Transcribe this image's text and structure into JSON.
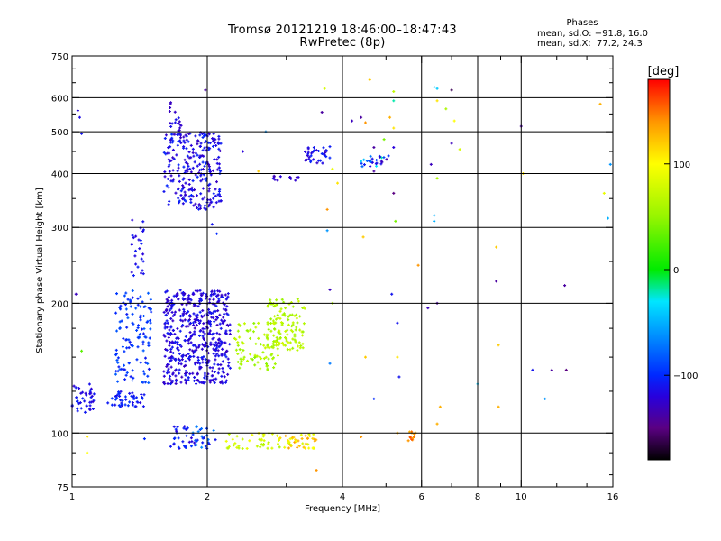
{
  "header": {
    "title_line1": "Tromsø 20121219 18:46:00–18:47:43",
    "title_line2": "RwPretec (8p)",
    "stats_title": "Phases",
    "stats_o": "mean, sd,O: −91.8, 16.0",
    "stats_x": "mean, sd,X:  77.2, 24.3"
  },
  "colorbar": {
    "label": "[deg]",
    "ticks": [
      {
        "value": 100,
        "label": "100"
      },
      {
        "value": 0,
        "label": "0"
      },
      {
        "value": -100,
        "label": "−100"
      }
    ],
    "range": [
      -180,
      180
    ]
  },
  "chart_data": {
    "type": "scatter",
    "title": "Tromsø 20121219 18:46:00–18:47:43",
    "subtitle": "RwPretec (8p)",
    "xlabel": "Frequency [MHz]",
    "ylabel": "Stationary phase Virtual Height [km]",
    "x_scale": "log",
    "y_scale": "log",
    "xlim": [
      1,
      16
    ],
    "ylim": [
      75,
      750
    ],
    "x_ticks": [
      {
        "value": 1,
        "label": "1"
      },
      {
        "value": 2,
        "label": "2"
      },
      {
        "value": 4,
        "label": "4"
      },
      {
        "value": 6,
        "label": "6"
      },
      {
        "value": 8,
        "label": "8"
      },
      {
        "value": 10,
        "label": "10"
      },
      {
        "value": 16,
        "label": "16"
      }
    ],
    "y_ticks": [
      {
        "value": 75,
        "label": "75"
      },
      {
        "value": 100,
        "label": "100"
      },
      {
        "value": 200,
        "label": "200"
      },
      {
        "value": 300,
        "label": "300"
      },
      {
        "value": 400,
        "label": "400"
      },
      {
        "value": 500,
        "label": "500"
      },
      {
        "value": 600,
        "label": "600"
      },
      {
        "value": 750,
        "label": "750"
      }
    ],
    "grid_x": [
      2,
      4,
      6,
      8,
      10
    ],
    "grid_y": [
      100,
      200,
      300,
      400,
      500,
      600
    ],
    "grid": true,
    "color_by": "phase_deg",
    "clusters": [
      {
        "x": [
          1.0,
          1.12
        ],
        "y": [
          110,
          130
        ],
        "n": 40,
        "phase": [
          -125,
          -100
        ]
      },
      {
        "x": [
          1.2,
          1.45
        ],
        "y": [
          115,
          125
        ],
        "n": 45,
        "phase": [
          -120,
          -95
        ]
      },
      {
        "x": [
          1.25,
          1.5
        ],
        "y": [
          130,
          215
        ],
        "n": 120,
        "phase": [
          -110,
          -80
        ]
      },
      {
        "x": [
          1.35,
          1.45
        ],
        "y": [
          230,
          320
        ],
        "n": 25,
        "phase": [
          -125,
          -105
        ]
      },
      {
        "x": [
          1.6,
          2.25
        ],
        "y": [
          130,
          215
        ],
        "n": 520,
        "phase": [
          -130,
          -105
        ]
      },
      {
        "x": [
          1.6,
          2.15
        ],
        "y": [
          330,
          500
        ],
        "n": 260,
        "phase": [
          -130,
          -100
        ]
      },
      {
        "x": [
          1.65,
          1.75
        ],
        "y": [
          500,
          590
        ],
        "n": 18,
        "phase": [
          -130,
          -110
        ]
      },
      {
        "x": [
          1.65,
          1.9
        ],
        "y": [
          91,
          104
        ],
        "n": 30,
        "phase": [
          -125,
          -95
        ]
      },
      {
        "x": [
          1.85,
          2.1
        ],
        "y": [
          92,
          104
        ],
        "n": 25,
        "phase": [
          -115,
          -60
        ]
      },
      {
        "x": [
          2.3,
          2.9
        ],
        "y": [
          140,
          180
        ],
        "n": 90,
        "phase": [
          45,
          75
        ]
      },
      {
        "x": [
          2.7,
          3.3
        ],
        "y": [
          155,
          205
        ],
        "n": 110,
        "phase": [
          50,
          80
        ]
      },
      {
        "x": [
          2.2,
          2.9
        ],
        "y": [
          92,
          100
        ],
        "n": 40,
        "phase": [
          60,
          95
        ]
      },
      {
        "x": [
          2.9,
          3.5
        ],
        "y": [
          92,
          100
        ],
        "n": 45,
        "phase": [
          80,
          140
        ]
      },
      {
        "x": [
          3.3,
          3.75
        ],
        "y": [
          420,
          465
        ],
        "n": 35,
        "phase": [
          -130,
          -100
        ]
      },
      {
        "x": [
          2.8,
          3.2
        ],
        "y": [
          385,
          395
        ],
        "n": 12,
        "phase": [
          -135,
          -110
        ]
      },
      {
        "x": [
          4.4,
          5.1
        ],
        "y": [
          415,
          440
        ],
        "n": 25,
        "phase": [
          -135,
          -20
        ]
      },
      {
        "x": [
          5.6,
          5.85
        ],
        "y": [
          96,
          101
        ],
        "n": 12,
        "phase": [
          120,
          160
        ]
      }
    ],
    "points": [
      {
        "x": 1.02,
        "y": 210,
        "phase": -130
      },
      {
        "x": 1.03,
        "y": 560,
        "phase": -120
      },
      {
        "x": 1.04,
        "y": 540,
        "phase": -115
      },
      {
        "x": 1.05,
        "y": 495,
        "phase": -110
      },
      {
        "x": 1.08,
        "y": 98,
        "phase": 110
      },
      {
        "x": 1.08,
        "y": 90,
        "phase": 100
      },
      {
        "x": 1.05,
        "y": 155,
        "phase": 30
      },
      {
        "x": 1.45,
        "y": 97,
        "phase": -100
      },
      {
        "x": 1.98,
        "y": 625,
        "phase": -140
      },
      {
        "x": 2.05,
        "y": 305,
        "phase": -110
      },
      {
        "x": 2.1,
        "y": 290,
        "phase": -100
      },
      {
        "x": 2.4,
        "y": 450,
        "phase": -120
      },
      {
        "x": 2.6,
        "y": 405,
        "phase": 120
      },
      {
        "x": 2.7,
        "y": 500,
        "phase": -60
      },
      {
        "x": 3.6,
        "y": 555,
        "phase": -140
      },
      {
        "x": 3.5,
        "y": 82,
        "phase": 140
      },
      {
        "x": 3.65,
        "y": 630,
        "phase": 80
      },
      {
        "x": 3.7,
        "y": 330,
        "phase": 140
      },
      {
        "x": 3.7,
        "y": 295,
        "phase": -60
      },
      {
        "x": 3.75,
        "y": 215,
        "phase": -130
      },
      {
        "x": 3.75,
        "y": 145,
        "phase": -70
      },
      {
        "x": 3.8,
        "y": 200,
        "phase": 60
      },
      {
        "x": 3.8,
        "y": 410,
        "phase": 90
      },
      {
        "x": 3.9,
        "y": 380,
        "phase": 110
      },
      {
        "x": 4.2,
        "y": 530,
        "phase": -130
      },
      {
        "x": 4.4,
        "y": 540,
        "phase": -140
      },
      {
        "x": 4.5,
        "y": 525,
        "phase": 140
      },
      {
        "x": 4.6,
        "y": 660,
        "phase": 120
      },
      {
        "x": 4.45,
        "y": 285,
        "phase": 120
      },
      {
        "x": 4.5,
        "y": 150,
        "phase": 120
      },
      {
        "x": 4.7,
        "y": 460,
        "phase": -140
      },
      {
        "x": 4.7,
        "y": 405,
        "phase": -140
      },
      {
        "x": 4.7,
        "y": 120,
        "phase": -100
      },
      {
        "x": 4.4,
        "y": 98,
        "phase": 140
      },
      {
        "x": 4.9,
        "y": 425,
        "phase": -130
      },
      {
        "x": 4.95,
        "y": 480,
        "phase": 40
      },
      {
        "x": 5.1,
        "y": 540,
        "phase": 130
      },
      {
        "x": 5.2,
        "y": 620,
        "phase": 70
      },
      {
        "x": 5.2,
        "y": 590,
        "phase": -20
      },
      {
        "x": 5.2,
        "y": 510,
        "phase": 110
      },
      {
        "x": 5.2,
        "y": 460,
        "phase": -120
      },
      {
        "x": 5.15,
        "y": 210,
        "phase": -110
      },
      {
        "x": 5.2,
        "y": 360,
        "phase": -150
      },
      {
        "x": 5.25,
        "y": 310,
        "phase": 40
      },
      {
        "x": 5.3,
        "y": 180,
        "phase": -110
      },
      {
        "x": 5.3,
        "y": 150,
        "phase": 110
      },
      {
        "x": 5.35,
        "y": 135,
        "phase": -110
      },
      {
        "x": 5.3,
        "y": 100,
        "phase": 130
      },
      {
        "x": 5.9,
        "y": 245,
        "phase": 140
      },
      {
        "x": 6.2,
        "y": 195,
        "phase": -130
      },
      {
        "x": 6.3,
        "y": 420,
        "phase": -130
      },
      {
        "x": 6.4,
        "y": 635,
        "phase": -40
      },
      {
        "x": 6.4,
        "y": 320,
        "phase": -50
      },
      {
        "x": 6.4,
        "y": 310,
        "phase": -50
      },
      {
        "x": 6.5,
        "y": 630,
        "phase": -40
      },
      {
        "x": 6.5,
        "y": 590,
        "phase": 110
      },
      {
        "x": 6.5,
        "y": 390,
        "phase": 60
      },
      {
        "x": 6.5,
        "y": 200,
        "phase": -140
      },
      {
        "x": 6.6,
        "y": 115,
        "phase": 130
      },
      {
        "x": 6.5,
        "y": 105,
        "phase": 130
      },
      {
        "x": 6.8,
        "y": 565,
        "phase": 60
      },
      {
        "x": 7.0,
        "y": 625,
        "phase": -160
      },
      {
        "x": 7.1,
        "y": 530,
        "phase": 100
      },
      {
        "x": 7.0,
        "y": 470,
        "phase": -130
      },
      {
        "x": 7.3,
        "y": 455,
        "phase": 80
      },
      {
        "x": 8.0,
        "y": 130,
        "phase": -40
      },
      {
        "x": 8.8,
        "y": 270,
        "phase": 120
      },
      {
        "x": 8.8,
        "y": 225,
        "phase": -140
      },
      {
        "x": 8.9,
        "y": 160,
        "phase": 120
      },
      {
        "x": 8.9,
        "y": 115,
        "phase": 130
      },
      {
        "x": 10.0,
        "y": 515,
        "phase": -140
      },
      {
        "x": 10.1,
        "y": 400,
        "phase": 110
      },
      {
        "x": 10.6,
        "y": 140,
        "phase": -110
      },
      {
        "x": 11.3,
        "y": 120,
        "phase": -60
      },
      {
        "x": 11.7,
        "y": 140,
        "phase": -140
      },
      {
        "x": 12.5,
        "y": 220,
        "phase": -140
      },
      {
        "x": 12.6,
        "y": 140,
        "phase": -150
      },
      {
        "x": 15.0,
        "y": 580,
        "phase": 130
      },
      {
        "x": 15.3,
        "y": 360,
        "phase": 90
      },
      {
        "x": 15.6,
        "y": 315,
        "phase": -50
      },
      {
        "x": 15.8,
        "y": 420,
        "phase": -60
      }
    ]
  }
}
